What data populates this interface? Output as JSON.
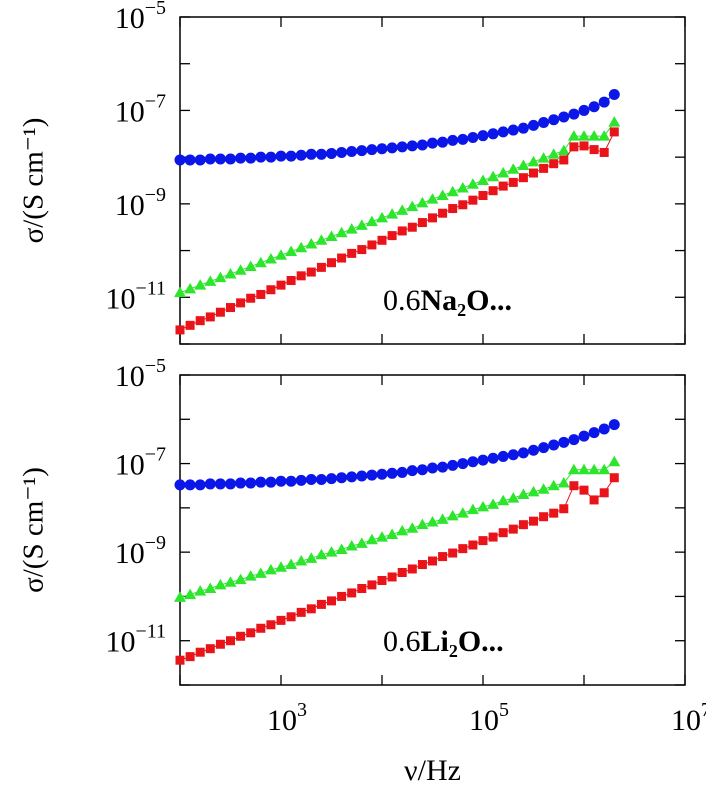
{
  "chart_data": [
    {
      "type": "line",
      "log_x": true,
      "log_y": true,
      "ylabel": "σ/(S cm⁻¹)",
      "annotation": [
        "0.6",
        "Na₂O..."
      ],
      "xlim": [
        100,
        10000000
      ],
      "xticks": [
        {
          "value": 100
        },
        {
          "value": 1000
        },
        {
          "value": 10000
        },
        {
          "value": 100000
        },
        {
          "value": 1000000
        },
        {
          "value": 10000000
        }
      ],
      "ylim": [
        1e-12,
        1e-05
      ],
      "yticks": [
        {
          "value": 1e-12
        },
        {
          "value": 1e-11,
          "label": {
            "base": "10",
            "exp": "−11"
          }
        },
        {
          "value": 1e-10
        },
        {
          "value": 1e-09,
          "label": {
            "base": "10",
            "exp": "−9"
          }
        },
        {
          "value": 1e-08
        },
        {
          "value": 1e-07,
          "label": {
            "base": "10",
            "exp": "−7"
          }
        },
        {
          "value": 1e-06
        },
        {
          "value": 1e-05,
          "label": {
            "base": "10",
            "exp": "−5"
          }
        }
      ],
      "x": [
        100,
        125.9,
        158.5,
        199.5,
        251.2,
        316.2,
        398.1,
        501.2,
        631,
        794.3,
        1000,
        1259,
        1585,
        1995,
        2512,
        3162,
        3981,
        5012,
        6310,
        7943,
        10000,
        12590,
        15850,
        19950,
        25120,
        31620,
        39810,
        50120,
        63100,
        79430,
        100000,
        125900,
        158500,
        199500,
        251200,
        316200,
        398100,
        501200,
        631000,
        794300,
        1000000,
        1259000,
        1585000,
        1995000
      ],
      "series": [
        {
          "color": "#0b16e8",
          "marker": "circle",
          "values": [
            8.71e-09,
            8.71e-09,
            8.71e-09,
            9.12e-09,
            9.12e-09,
            9.12e-09,
            9.55e-09,
            9.55e-09,
            1e-08,
            1e-08,
            1.05e-08,
            1.05e-08,
            1.1e-08,
            1.15e-08,
            1.15e-08,
            1.2e-08,
            1.26e-08,
            1.32e-08,
            1.38e-08,
            1.45e-08,
            1.51e-08,
            1.58e-08,
            1.66e-08,
            1.74e-08,
            1.82e-08,
            2e-08,
            2.09e-08,
            2.29e-08,
            2.4e-08,
            2.63e-08,
            2.88e-08,
            3.16e-08,
            3.47e-08,
            3.8e-08,
            4.17e-08,
            4.79e-08,
            5.5e-08,
            6.31e-08,
            7.24e-08,
            8.32e-08,
            1e-07,
            1.2e-07,
            1.51e-07,
            2.19e-07
          ]
        },
        {
          "color": "#2de52d",
          "marker": "triangle",
          "values": [
            1.26e-11,
            1.51e-11,
            1.82e-11,
            2.19e-11,
            2.63e-11,
            3.16e-11,
            3.8e-11,
            4.57e-11,
            5.5e-11,
            6.61e-11,
            7.94e-11,
            9.55e-11,
            1.15e-10,
            1.38e-10,
            1.66e-10,
            2e-10,
            2.4e-10,
            2.88e-10,
            3.47e-10,
            4.17e-10,
            5.01e-10,
            6.03e-10,
            7.24e-10,
            8.71e-10,
            1.05e-09,
            1.26e-09,
            1.51e-09,
            1.82e-09,
            2.19e-09,
            2.63e-09,
            3.16e-09,
            3.8e-09,
            4.57e-09,
            5.5e-09,
            6.61e-09,
            7.94e-09,
            9.55e-09,
            1.15e-08,
            1.38e-08,
            2.82e-08,
            2.82e-08,
            2.82e-08,
            2.82e-08,
            5.62e-08
          ]
        },
        {
          "color": "#e8141a",
          "marker": "square",
          "values": [
            2e-12,
            2.51e-12,
            3.16e-12,
            3.8e-12,
            4.79e-12,
            6.03e-12,
            7.59e-12,
            9.55e-12,
            1.15e-11,
            1.45e-11,
            1.82e-11,
            2.29e-11,
            2.88e-11,
            3.47e-11,
            4.37e-11,
            5.5e-11,
            6.92e-11,
            8.71e-11,
            1.05e-10,
            1.32e-10,
            1.66e-10,
            2.09e-10,
            2.63e-10,
            3.16e-10,
            3.98e-10,
            5.01e-10,
            6.31e-10,
            7.94e-10,
            9.55e-10,
            1.2e-09,
            1.51e-09,
            1.91e-09,
            2.4e-09,
            2.88e-09,
            3.63e-09,
            4.57e-09,
            5.75e-09,
            7.24e-09,
            8.71e-09,
            1.66e-08,
            1.74e-08,
            1.45e-08,
            1.26e-08,
            3.47e-08
          ]
        }
      ]
    },
    {
      "type": "line",
      "log_x": true,
      "log_y": true,
      "ylabel": "σ/(S cm⁻¹)",
      "xlabel": "ν/Hz",
      "annotation": [
        "0.6",
        "Li₂O..."
      ],
      "xlim": [
        100,
        10000000
      ],
      "xticks": [
        {
          "value": 100
        },
        {
          "value": 1000,
          "label": {
            "base": "10",
            "exp": "3"
          }
        },
        {
          "value": 10000
        },
        {
          "value": 100000,
          "label": {
            "base": "10",
            "exp": "5"
          }
        },
        {
          "value": 1000000
        },
        {
          "value": 10000000,
          "label": {
            "base": "10",
            "exp": "7"
          }
        }
      ],
      "ylim": [
        1e-12,
        1e-05
      ],
      "yticks": [
        {
          "value": 1e-12
        },
        {
          "value": 1e-11,
          "label": {
            "base": "10",
            "exp": "−11"
          }
        },
        {
          "value": 1e-10
        },
        {
          "value": 1e-09,
          "label": {
            "base": "10",
            "exp": "−9"
          }
        },
        {
          "value": 1e-08
        },
        {
          "value": 1e-07,
          "label": {
            "base": "10",
            "exp": "−7"
          }
        },
        {
          "value": 1e-06
        },
        {
          "value": 1e-05,
          "label": {
            "base": "10",
            "exp": "−5"
          }
        }
      ],
      "x": [
        100,
        125.9,
        158.5,
        199.5,
        251.2,
        316.2,
        398.1,
        501.2,
        631,
        794.3,
        1000,
        1259,
        1585,
        1995,
        2512,
        3162,
        3981,
        5012,
        6310,
        7943,
        10000,
        12590,
        15850,
        19950,
        25120,
        31620,
        39810,
        50120,
        63100,
        79430,
        100000,
        125900,
        158500,
        199500,
        251200,
        316200,
        398100,
        501200,
        631000,
        794300,
        1000000,
        1259000,
        1585000,
        1995000
      ],
      "series": [
        {
          "color": "#0b16e8",
          "marker": "circle",
          "values": [
            3.31e-08,
            3.31e-08,
            3.31e-08,
            3.47e-08,
            3.47e-08,
            3.47e-08,
            3.63e-08,
            3.63e-08,
            3.8e-08,
            3.8e-08,
            3.98e-08,
            3.98e-08,
            4.17e-08,
            4.37e-08,
            4.37e-08,
            4.57e-08,
            4.79e-08,
            5.01e-08,
            5.25e-08,
            5.5e-08,
            5.75e-08,
            6.03e-08,
            6.31e-08,
            6.92e-08,
            7.24e-08,
            7.94e-08,
            8.32e-08,
            9.12e-08,
            1e-07,
            1.1e-07,
            1.2e-07,
            1.32e-07,
            1.45e-07,
            1.58e-07,
            1.74e-07,
            2e-07,
            2.29e-07,
            2.63e-07,
            3.02e-07,
            3.47e-07,
            4.17e-07,
            5.01e-07,
            6.03e-07,
            7.59e-07
          ]
        },
        {
          "color": "#2de52d",
          "marker": "triangle",
          "values": [
            9.55e-11,
            1.1e-10,
            1.32e-10,
            1.51e-10,
            1.82e-10,
            2.09e-10,
            2.4e-10,
            2.88e-10,
            3.31e-10,
            3.98e-10,
            4.57e-10,
            5.25e-10,
            6.31e-10,
            7.24e-10,
            8.71e-10,
            1e-09,
            1.15e-09,
            1.38e-09,
            1.58e-09,
            1.91e-09,
            2.19e-09,
            2.51e-09,
            3.02e-09,
            3.47e-09,
            4.17e-09,
            4.79e-09,
            5.5e-09,
            6.61e-09,
            7.59e-09,
            9.12e-09,
            1.05e-08,
            1.2e-08,
            1.45e-08,
            1.66e-08,
            2e-08,
            2.29e-08,
            2.63e-08,
            3.16e-08,
            3.63e-08,
            7.24e-08,
            7.24e-08,
            7.24e-08,
            7.24e-08,
            1.1e-07
          ]
        },
        {
          "color": "#e8141a",
          "marker": "square",
          "values": [
            3.63e-12,
            4.37e-12,
            5.5e-12,
            6.61e-12,
            8.32e-12,
            1e-11,
            1.26e-11,
            1.51e-11,
            1.91e-11,
            2.29e-11,
            2.88e-11,
            3.47e-11,
            4.37e-11,
            5.25e-11,
            6.61e-11,
            7.94e-11,
            1e-10,
            1.2e-10,
            1.51e-10,
            1.82e-10,
            2.29e-10,
            2.75e-10,
            3.47e-10,
            4.17e-10,
            5.25e-10,
            6.31e-10,
            7.94e-10,
            9.55e-10,
            1.2e-09,
            1.45e-09,
            1.82e-09,
            2.19e-09,
            2.75e-09,
            3.31e-09,
            4.17e-09,
            5.01e-09,
            6.31e-09,
            7.59e-09,
            9.55e-09,
            3.16e-08,
            2.51e-08,
            1.51e-08,
            2.19e-08,
            4.79e-08
          ]
        }
      ]
    }
  ]
}
